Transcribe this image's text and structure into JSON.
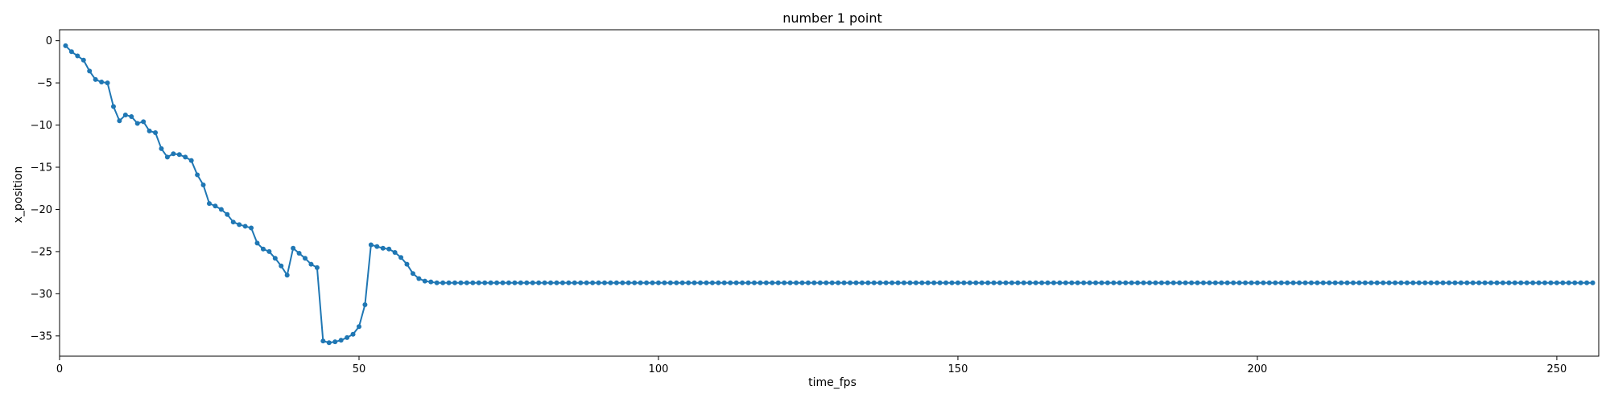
{
  "chart_data": {
    "type": "line",
    "title": "number 1 point",
    "xlabel": "time_fps",
    "ylabel": "x_position",
    "xlim": [
      0,
      257
    ],
    "ylim": [
      -37.4,
      1.3
    ],
    "xticks": [
      0,
      50,
      100,
      150,
      200,
      250
    ],
    "yticks": [
      0,
      -5,
      -10,
      -15,
      -20,
      -25,
      -30,
      -35
    ],
    "grid": false,
    "series": [
      {
        "color": "#1f77b4",
        "marker": "circle",
        "x_start": 1,
        "x_step": 1,
        "values": [
          -0.6,
          -1.3,
          -1.8,
          -2.3,
          -3.6,
          -4.6,
          -4.9,
          -5.0,
          -7.8,
          -9.5,
          -8.8,
          -9.0,
          -9.8,
          -9.6,
          -10.7,
          -10.9,
          -12.8,
          -13.8,
          -13.4,
          -13.5,
          -13.8,
          -14.2,
          -15.9,
          -17.1,
          -19.3,
          -19.6,
          -20.0,
          -20.6,
          -21.5,
          -21.8,
          -22.0,
          -22.2,
          -24.0,
          -24.7,
          -25.0,
          -25.8,
          -26.7,
          -27.8,
          -24.6,
          -25.2,
          -25.8,
          -26.5,
          -26.9,
          -35.6,
          -35.8,
          -35.7,
          -35.5,
          -35.2,
          -34.8,
          -33.9,
          -31.3,
          -24.2,
          -24.4,
          -24.6,
          -24.7,
          -25.1,
          -25.7,
          -26.5,
          -27.6,
          -28.2,
          -28.5,
          -28.6,
          -28.7,
          -28.7,
          -28.7,
          -28.7,
          -28.7,
          -28.7,
          -28.7,
          -28.7,
          -28.7,
          -28.7,
          -28.7,
          -28.7,
          -28.7,
          -28.7,
          -28.7,
          -28.7,
          -28.7,
          -28.7,
          -28.7,
          -28.7,
          -28.7,
          -28.7,
          -28.7,
          -28.7,
          -28.7,
          -28.7,
          -28.7,
          -28.7,
          -28.7,
          -28.7,
          -28.7,
          -28.7,
          -28.7,
          -28.7,
          -28.7,
          -28.7,
          -28.7,
          -28.7,
          -28.7,
          -28.7,
          -28.7,
          -28.7,
          -28.7,
          -28.7,
          -28.7,
          -28.7,
          -28.7,
          -28.7,
          -28.7,
          -28.7,
          -28.7,
          -28.7,
          -28.7,
          -28.7,
          -28.7,
          -28.7,
          -28.7,
          -28.7,
          -28.7,
          -28.7,
          -28.7,
          -28.7,
          -28.7,
          -28.7,
          -28.7,
          -28.7,
          -28.7,
          -28.7,
          -28.7,
          -28.7,
          -28.7,
          -28.7,
          -28.7,
          -28.7,
          -28.7,
          -28.7,
          -28.7,
          -28.7,
          -28.7,
          -28.7,
          -28.7,
          -28.7,
          -28.7,
          -28.7,
          -28.7,
          -28.7,
          -28.7,
          -28.7,
          -28.7,
          -28.7,
          -28.7,
          -28.7,
          -28.7,
          -28.7,
          -28.7,
          -28.7,
          -28.7,
          -28.7,
          -28.7,
          -28.7,
          -28.7,
          -28.7,
          -28.7,
          -28.7,
          -28.7,
          -28.7,
          -28.7,
          -28.7,
          -28.7,
          -28.7,
          -28.7,
          -28.7,
          -28.7,
          -28.7,
          -28.7,
          -28.7,
          -28.7,
          -28.7,
          -28.7,
          -28.7,
          -28.7,
          -28.7,
          -28.7,
          -28.7,
          -28.7,
          -28.7,
          -28.7,
          -28.7,
          -28.7,
          -28.7,
          -28.7,
          -28.7,
          -28.7,
          -28.7,
          -28.7,
          -28.7,
          -28.7,
          -28.7,
          -28.7,
          -28.7,
          -28.7,
          -28.7,
          -28.7,
          -28.7,
          -28.7,
          -28.7,
          -28.7,
          -28.7,
          -28.7,
          -28.7,
          -28.7,
          -28.7,
          -28.7,
          -28.7,
          -28.7,
          -28.7,
          -28.7,
          -28.7,
          -28.7,
          -28.7,
          -28.7,
          -28.7,
          -28.7,
          -28.7,
          -28.7,
          -28.7,
          -28.7,
          -28.7,
          -28.7,
          -28.7,
          -28.7,
          -28.7,
          -28.7,
          -28.7,
          -28.7,
          -28.7,
          -28.7,
          -28.7,
          -28.7,
          -28.7,
          -28.7,
          -28.7,
          -28.7,
          -28.7,
          -28.7,
          -28.7,
          -28.7,
          -28.7,
          -28.7,
          -28.7,
          -28.7,
          -28.7,
          -28.7,
          -28.7
        ]
      }
    ]
  }
}
